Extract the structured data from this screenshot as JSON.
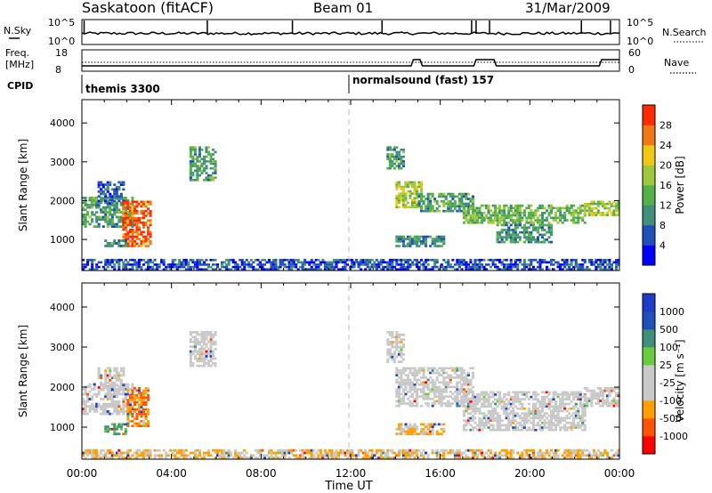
{
  "header": {
    "station": "Saskatoon (fitACF)",
    "beam": "Beam 01",
    "date": "31/Mar/2009"
  },
  "top_panels": {
    "nsky_label": "N.Sky",
    "nsky_ticks": [
      "10^5",
      "10^0"
    ],
    "nsearch_label": "N.Search",
    "nsearch_ticks": [
      "10^5",
      "10^0"
    ],
    "freq_label_1": "Freq.",
    "freq_label_2": "[MHz]",
    "freq_ticks": [
      "18",
      "8"
    ],
    "nave_label": "Nave",
    "nave_ticks": [
      "60",
      "0"
    ],
    "cpid_label": "CPID",
    "cpid_segments": [
      {
        "label": "themis 3300",
        "start_hour": 0
      },
      {
        "label": "normalsound (fast) 157",
        "start_hour": 12
      }
    ]
  },
  "colors": {
    "power": [
      "#0000ff",
      "#214eb8",
      "#3f8f7a",
      "#55b04a",
      "#a0c83c",
      "#f0c814",
      "#f07814",
      "#ff2a00"
    ],
    "velocity": [
      "#ff0000",
      "#ff5500",
      "#ffa000",
      "#c8c8c8",
      "#c8c8c8",
      "#6acc3c",
      "#3f8f7a",
      "#214eb8",
      "#1e3cc8"
    ]
  },
  "chart_data": [
    {
      "type": "heatmap",
      "name": "power",
      "ylabel": "Slant Range [km]",
      "yticks": [
        "4000",
        "3000",
        "2000",
        "1000"
      ],
      "ylim": [
        200,
        4600
      ],
      "xlim": [
        0,
        24
      ],
      "colorbar_label": "Power [dB]",
      "colorbar_ticks": [
        "28",
        "24",
        "20",
        "16",
        "12",
        "8",
        "4"
      ],
      "clim": [
        0,
        32
      ],
      "regions": [
        {
          "t0": 0.0,
          "t1": 2.3,
          "r0": 1300,
          "r1": 2100,
          "value": 12
        },
        {
          "t0": 0.7,
          "t1": 1.9,
          "r0": 1900,
          "r1": 2500,
          "value": 7
        },
        {
          "t0": 1.8,
          "t1": 3.1,
          "r0": 800,
          "r1": 2000,
          "value": 28
        },
        {
          "t0": 1.0,
          "t1": 2.0,
          "r0": 800,
          "r1": 1000,
          "value": 12
        },
        {
          "t0": 4.8,
          "t1": 6.0,
          "r0": 2500,
          "r1": 3400,
          "value": 12
        },
        {
          "t0": 13.6,
          "t1": 14.4,
          "r0": 2800,
          "r1": 3400,
          "value": 12
        },
        {
          "t0": 14.0,
          "t1": 15.2,
          "r0": 1800,
          "r1": 2500,
          "value": 18
        },
        {
          "t0": 15.0,
          "t1": 17.5,
          "r0": 1700,
          "r1": 2200,
          "value": 12
        },
        {
          "t0": 14.0,
          "t1": 16.2,
          "r0": 800,
          "r1": 1100,
          "value": 10
        },
        {
          "t0": 17.0,
          "t1": 22.5,
          "r0": 1400,
          "r1": 1900,
          "value": 15
        },
        {
          "t0": 18.5,
          "t1": 21.0,
          "r0": 900,
          "r1": 1400,
          "value": 11
        },
        {
          "t0": 22.4,
          "t1": 24.0,
          "r0": 1600,
          "r1": 2000,
          "value": 18
        },
        {
          "t0": 0.0,
          "t1": 24.0,
          "r0": 200,
          "r1": 500,
          "value": 6
        }
      ]
    },
    {
      "type": "heatmap",
      "name": "velocity",
      "ylabel": "Slant Range [km]",
      "yticks": [
        "4000",
        "3000",
        "2000",
        "1000"
      ],
      "ylim": [
        200,
        4600
      ],
      "xlim": [
        0,
        24
      ],
      "colorbar_label": "Velocity [m s⁻¹]",
      "colorbar_ticks": [
        "1000",
        "500",
        "100",
        "25",
        "-25",
        "-100",
        "-500",
        "-1000"
      ],
      "regions": [
        {
          "t0": 0.0,
          "t1": 2.3,
          "r0": 1300,
          "r1": 2100,
          "value": 0
        },
        {
          "t0": 0.7,
          "t1": 1.9,
          "r0": 1900,
          "r1": 2500,
          "value": 0
        },
        {
          "t0": 2.0,
          "t1": 3.0,
          "r0": 1000,
          "r1": 2000,
          "value": -500
        },
        {
          "t0": 1.0,
          "t1": 2.0,
          "r0": 800,
          "r1": 1100,
          "value": 100
        },
        {
          "t0": 4.8,
          "t1": 6.0,
          "r0": 2500,
          "r1": 3400,
          "value": 0
        },
        {
          "t0": 13.6,
          "t1": 14.4,
          "r0": 2600,
          "r1": 3400,
          "value": 0
        },
        {
          "t0": 14.0,
          "t1": 17.5,
          "r0": 1500,
          "r1": 2500,
          "value": 0
        },
        {
          "t0": 14.0,
          "t1": 16.2,
          "r0": 800,
          "r1": 1100,
          "value": -100
        },
        {
          "t0": 17.0,
          "t1": 22.5,
          "r0": 900,
          "r1": 1900,
          "value": 0
        },
        {
          "t0": 22.4,
          "t1": 24.0,
          "r0": 1500,
          "r1": 2000,
          "value": 0
        },
        {
          "t0": 0.0,
          "t1": 24.0,
          "r0": 200,
          "r1": 450,
          "value": -100
        }
      ]
    }
  ],
  "xaxis": {
    "label": "Time UT",
    "ticks": [
      "00:00",
      "04:00",
      "08:00",
      "12:00",
      "16:00",
      "20:00",
      "00:00"
    ]
  }
}
